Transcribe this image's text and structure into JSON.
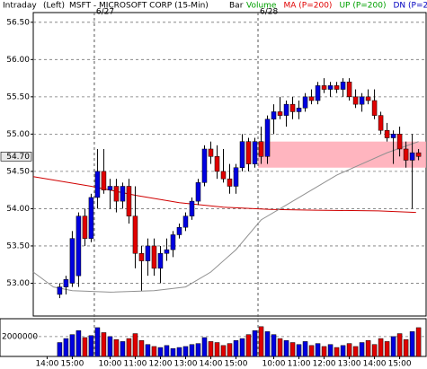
{
  "chart_data": {
    "type": "candlestick",
    "header": {
      "mode": "Intraday",
      "side": "(Left)",
      "title": "MSFT - MICROSOFT CORP (15-Min)",
      "style": "Bar"
    },
    "legend": [
      {
        "name": "Volume",
        "color": "#00a000"
      },
      {
        "name": "MA (P=200)",
        "color": "#e00000"
      },
      {
        "name": "UP (P=200)",
        "color": "#00a000"
      },
      {
        "name": "DN (P=200)",
        "color": "#0000c0"
      }
    ],
    "up_color": "#0000e0",
    "down_color": "#e00000",
    "xlim": [
      -4.2,
      58.2
    ],
    "xticks": [
      {
        "value": -2,
        "label": "14:00"
      },
      {
        "value": 2,
        "label": "15:00"
      },
      {
        "value": 8,
        "label": "10:00"
      },
      {
        "value": 12,
        "label": "11:00"
      },
      {
        "value": 16,
        "label": "12:00"
      },
      {
        "value": 20,
        "label": "13:00"
      },
      {
        "value": 24,
        "label": "14:00"
      },
      {
        "value": 28,
        "label": "15:00"
      },
      {
        "value": 34,
        "label": "10:00"
      },
      {
        "value": 38,
        "label": "11:00"
      },
      {
        "value": 42,
        "label": "12:00"
      },
      {
        "value": 46,
        "label": "13:00"
      },
      {
        "value": 50,
        "label": "14:00"
      },
      {
        "value": 54,
        "label": "15:00"
      }
    ],
    "day_breaks": [
      {
        "value": 6,
        "label": "6/27"
      },
      {
        "value": 32,
        "label": "6/28"
      }
    ],
    "ylim": [
      52.56,
      56.63
    ],
    "yticks": [
      {
        "value": 56.5,
        "label": "56.50"
      },
      {
        "value": 56,
        "label": "56.00"
      },
      {
        "value": 55.5,
        "label": "55.50"
      },
      {
        "value": 55,
        "label": "55.00"
      },
      {
        "value": 54.5,
        "label": "54.50"
      },
      {
        "value": 54,
        "label": "54.00"
      },
      {
        "value": 53.5,
        "label": "53.50"
      },
      {
        "value": 53,
        "label": "53.00"
      }
    ],
    "last_price": {
      "value": 54.7,
      "label": "54.70"
    },
    "grid": true,
    "zone": {
      "ylim": [
        54.55,
        54.9
      ],
      "x0": 31.5,
      "color": "#ffa8b4"
    },
    "open": [
      52.85,
      52.95,
      53.0,
      53.1,
      53.9,
      53.6,
      54.15,
      54.5,
      54.25,
      54.3,
      54.1,
      54.3,
      53.9,
      53.4,
      53.3,
      53.5,
      53.2,
      53.4,
      53.45,
      53.65,
      53.75,
      53.9,
      54.1,
      54.35,
      54.8,
      54.7,
      54.5,
      54.4,
      54.3,
      54.55,
      54.9,
      54.6,
      54.9,
      54.7,
      55.2,
      55.3,
      55.25,
      55.4,
      55.3,
      55.35,
      55.5,
      55.45,
      55.65,
      55.6,
      55.65,
      55.6,
      55.7,
      55.5,
      55.4,
      55.5,
      55.45,
      55.25,
      55.05,
      54.95,
      55.0,
      54.8,
      54.65,
      54.75
    ],
    "high": [
      53.0,
      53.1,
      53.7,
      53.95,
      54.0,
      54.2,
      54.8,
      54.8,
      54.4,
      54.4,
      54.35,
      54.4,
      54.3,
      53.5,
      53.6,
      53.6,
      53.5,
      53.6,
      53.7,
      53.8,
      53.95,
      54.15,
      54.4,
      54.85,
      54.9,
      54.85,
      54.8,
      54.6,
      54.6,
      55.0,
      54.95,
      54.95,
      55.1,
      55.25,
      55.4,
      55.5,
      55.45,
      55.5,
      55.45,
      55.55,
      55.6,
      55.7,
      55.75,
      55.7,
      55.7,
      55.75,
      55.75,
      55.6,
      55.55,
      55.6,
      55.6,
      55.3,
      55.15,
      55.05,
      55.1,
      54.9,
      55.0,
      54.8
    ],
    "low": [
      52.8,
      52.85,
      52.95,
      52.95,
      53.5,
      53.55,
      54.0,
      54.2,
      54.0,
      53.95,
      54.0,
      53.8,
      53.2,
      52.9,
      53.1,
      53.1,
      53.0,
      53.3,
      53.35,
      53.6,
      53.7,
      53.85,
      54.05,
      54.3,
      54.6,
      54.4,
      54.35,
      54.2,
      54.2,
      54.5,
      54.5,
      54.55,
      54.6,
      54.6,
      55.0,
      55.2,
      55.1,
      55.2,
      55.2,
      55.3,
      55.4,
      55.4,
      55.55,
      55.5,
      55.55,
      55.5,
      55.45,
      55.35,
      55.3,
      55.4,
      55.2,
      55.0,
      54.9,
      54.6,
      54.7,
      54.55,
      54.0,
      54.65
    ],
    "close": [
      52.95,
      53.05,
      53.6,
      53.9,
      53.6,
      54.15,
      54.5,
      54.25,
      54.3,
      54.1,
      54.3,
      53.9,
      53.4,
      53.3,
      53.5,
      53.2,
      53.4,
      53.45,
      53.65,
      53.75,
      53.9,
      54.1,
      54.35,
      54.8,
      54.7,
      54.5,
      54.4,
      54.3,
      54.55,
      54.9,
      54.6,
      54.9,
      54.7,
      55.2,
      55.3,
      55.25,
      55.4,
      55.3,
      55.35,
      55.5,
      55.45,
      55.65,
      55.6,
      55.65,
      55.6,
      55.7,
      55.5,
      55.4,
      55.5,
      55.45,
      55.25,
      55.05,
      54.95,
      55.0,
      54.8,
      54.65,
      54.75,
      54.7
    ],
    "lines": [
      {
        "name": "MA (P=200)",
        "color": "#d00000",
        "x": [
          -4.2,
          5,
          12,
          19,
          26,
          33.4,
          40.6,
          50.6,
          56.6
        ],
        "values": [
          54.43,
          54.3,
          54.18,
          54.08,
          54.02,
          53.99,
          53.98,
          53.97,
          53.95
        ]
      },
      {
        "color": "#909090",
        "x": [
          -4.2,
          -1,
          2,
          8,
          15,
          20,
          24,
          28,
          32,
          36,
          40,
          44,
          48,
          52,
          57
        ],
        "values": [
          53.15,
          52.95,
          52.9,
          52.88,
          52.9,
          52.95,
          53.15,
          53.45,
          53.85,
          54.05,
          54.25,
          54.45,
          54.6,
          54.75,
          54.9
        ]
      }
    ],
    "volume": [
      1400000,
      1800000,
      2200000,
      2600000,
      1900000,
      2100000,
      2900000,
      2400000,
      2000000,
      1700000,
      1500000,
      1800000,
      2300000,
      1600000,
      1200000,
      1000000,
      900000,
      1100000,
      800000,
      900000,
      1000000,
      1200000,
      1300000,
      1900000,
      1500000,
      1400000,
      1100000,
      1300000,
      1600000,
      1800000,
      2200000,
      2600000,
      3000000,
      2500000,
      2200000,
      1800000,
      1600000,
      1400000,
      1200000,
      1500000,
      1100000,
      1300000,
      1000000,
      1200000,
      900000,
      1100000,
      1300000,
      1000000,
      1400000,
      1600000,
      1200000,
      1800000,
      1500000,
      2000000,
      2300000,
      1700000,
      2500000,
      2900000
    ],
    "vylim": [
      0,
      3800000
    ],
    "vyticks": [
      2000000
    ]
  }
}
